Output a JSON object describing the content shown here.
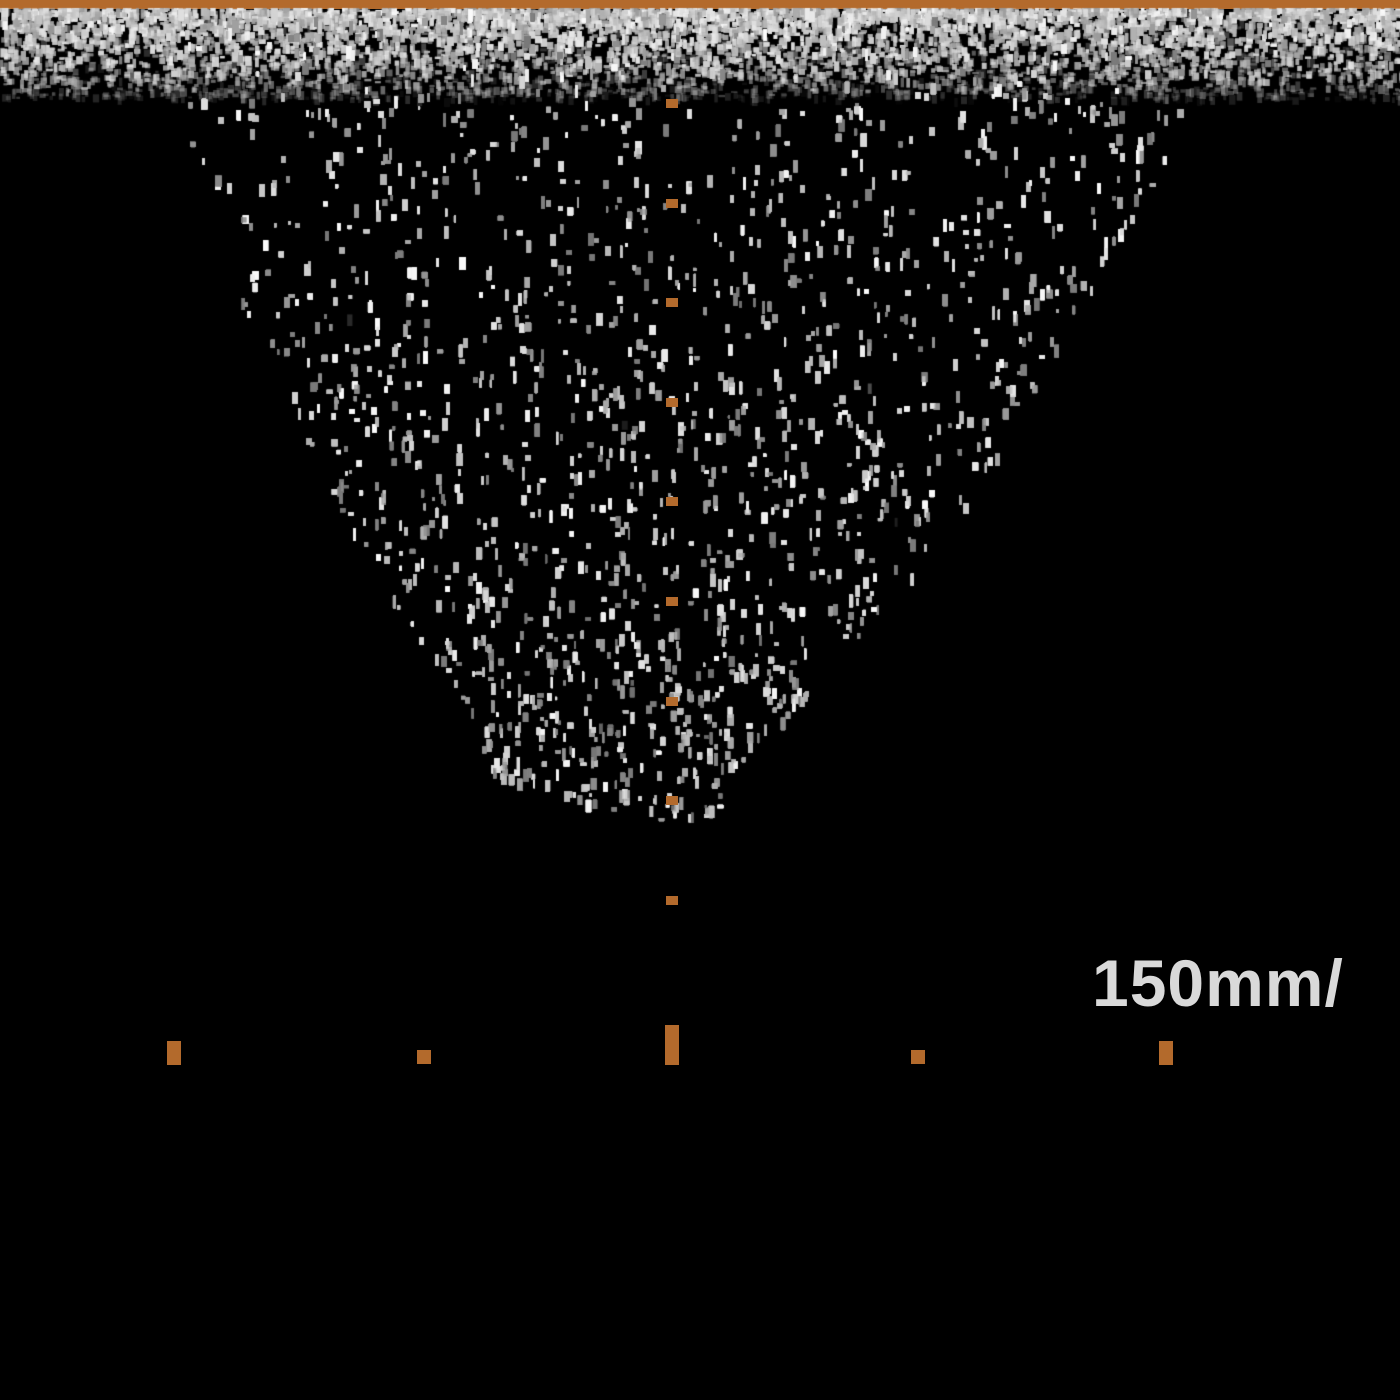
{
  "image_type": "doppler-spectral-waveform",
  "colors": {
    "background": "#000000",
    "marker": "#b36a2c",
    "top_bar": "#b36a2c",
    "speckle": "#d8d8d8",
    "label": "#d9d9d9"
  },
  "sweep_speed_label": "150mm/"
}
